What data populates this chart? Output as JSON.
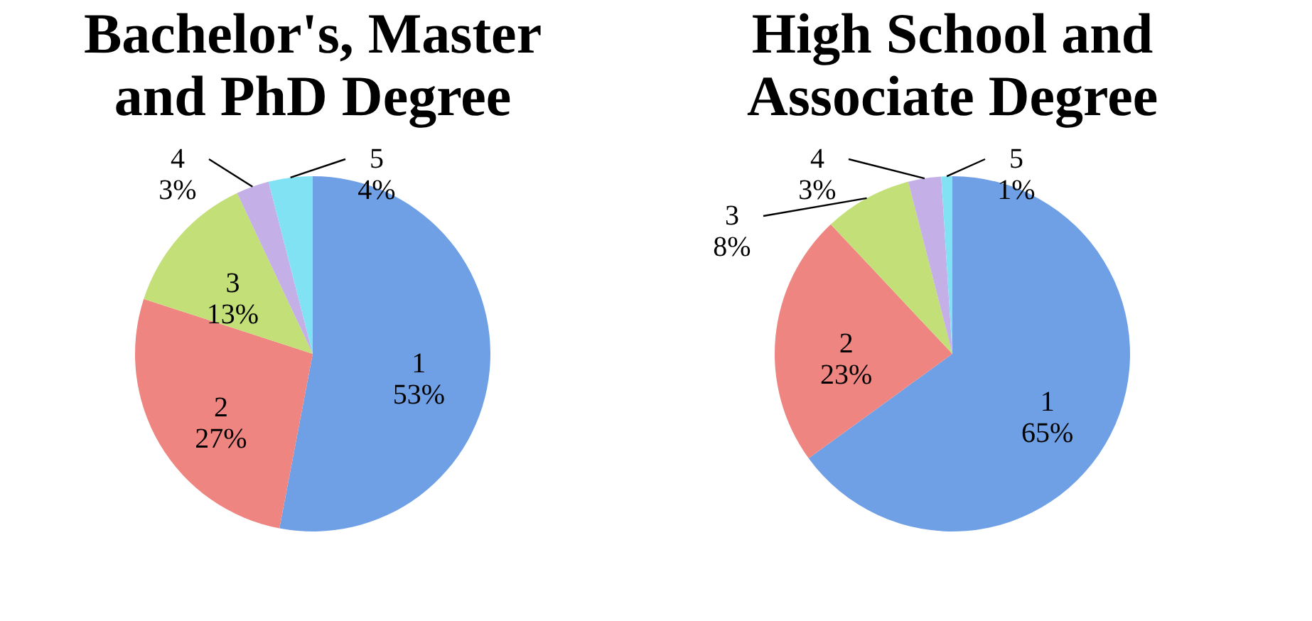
{
  "chart_data": [
    {
      "type": "pie",
      "title": "Bachelor's, Master\nand PhD Degree",
      "categories": [
        "1",
        "2",
        "3",
        "4",
        "5"
      ],
      "values": [
        53,
        27,
        13,
        3,
        4
      ],
      "value_labels": [
        "53%",
        "27%",
        "13%",
        "3%",
        "4%"
      ],
      "colors": [
        "#6fa0e6",
        "#ee8580",
        "#c2df78",
        "#c4b0e6",
        "#80e2f2"
      ],
      "legend": false
    },
    {
      "type": "pie",
      "title": "High School and\nAssociate Degree",
      "categories": [
        "1",
        "2",
        "3",
        "4",
        "5"
      ],
      "values": [
        65,
        23,
        8,
        3,
        1
      ],
      "value_labels": [
        "65%",
        "23%",
        "8%",
        "3%",
        "1%"
      ],
      "colors": [
        "#6fa0e6",
        "#ee8580",
        "#c2df78",
        "#c4b0e6",
        "#80e2f2"
      ],
      "legend": false
    }
  ]
}
